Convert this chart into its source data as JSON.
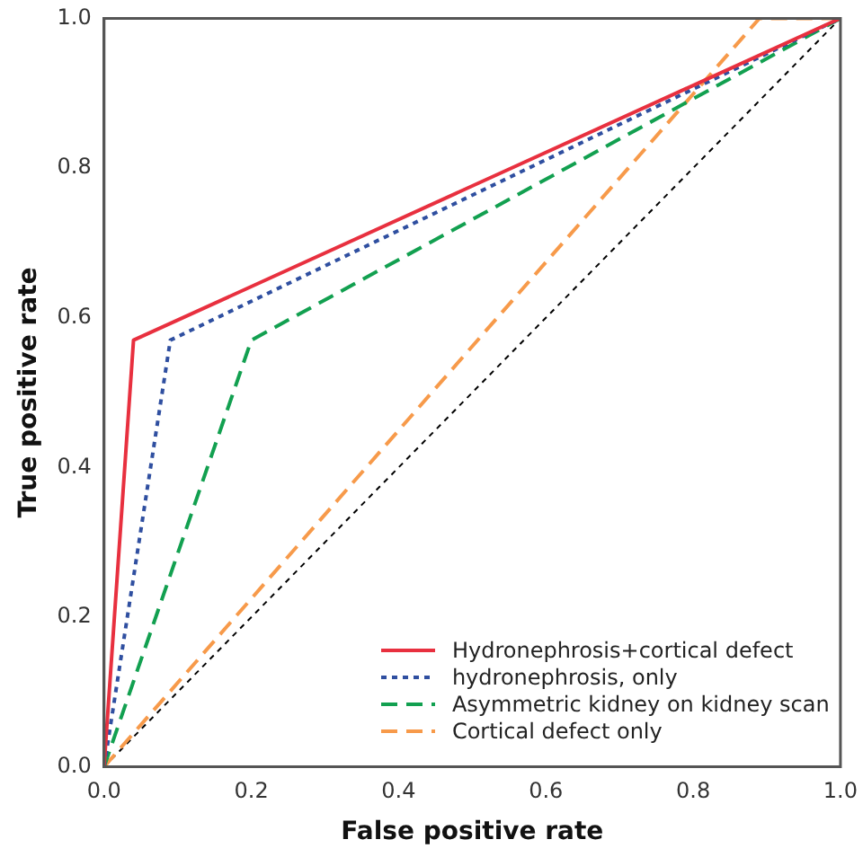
{
  "chart_data": {
    "type": "line",
    "xlabel": "False positive rate",
    "ylabel": "True positive rate",
    "xlim": [
      0,
      1
    ],
    "ylim": [
      0,
      1
    ],
    "xticks": [
      {
        "value": 0,
        "label": "0.0"
      },
      {
        "value": 0.2,
        "label": "0.2"
      },
      {
        "value": 0.4,
        "label": "0.4"
      },
      {
        "value": 0.6,
        "label": "0.6"
      },
      {
        "value": 0.8,
        "label": "0.8"
      },
      {
        "value": 1,
        "label": "1.0"
      }
    ],
    "yticks": [
      {
        "value": 0,
        "label": "0.0"
      },
      {
        "value": 0.2,
        "label": "0.2"
      },
      {
        "value": 0.4,
        "label": "0.4"
      },
      {
        "value": 0.6,
        "label": "0.6"
      },
      {
        "value": 0.8,
        "label": "0.8"
      },
      {
        "value": 1,
        "label": "1.0"
      }
    ],
    "grid": false,
    "legend": "bottom right",
    "marker": "none",
    "series": [
      {
        "name": "Hydronephrosis+cortical defect",
        "color": "#e8303f",
        "line_style": "solid",
        "x": [
          0,
          0.04,
          1
        ],
        "values": [
          0,
          0.57,
          1
        ]
      },
      {
        "name": "hydronephrosis, only",
        "color": "#2f4fa0",
        "line_style": "dotted",
        "x": [
          0,
          0.09,
          1
        ],
        "values": [
          0,
          0.57,
          1
        ]
      },
      {
        "name": "Asymmetric kidney on kidney scan",
        "color": "#12a050",
        "line_style": "dashed",
        "x": [
          0,
          0.2,
          1
        ],
        "values": [
          0,
          0.57,
          1
        ]
      },
      {
        "name": "Cortical defect only",
        "color": "#f79a4a",
        "line_style": "dashed",
        "x": [
          0,
          0.89,
          1
        ],
        "values": [
          0,
          1,
          1
        ]
      },
      {
        "color": "#000000",
        "line_style": "dotted",
        "x": [
          0,
          1
        ],
        "values": [
          0,
          1
        ]
      }
    ]
  }
}
